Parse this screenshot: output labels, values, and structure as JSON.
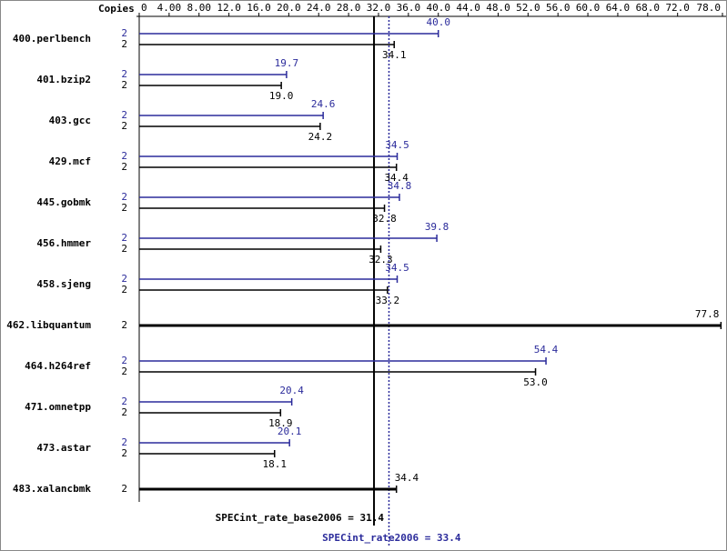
{
  "chart_data": {
    "type": "spec-bar",
    "copies_label": "Copies",
    "categories": [
      "400.perlbench",
      "401.bzip2",
      "403.gcc",
      "429.mcf",
      "445.gobmk",
      "456.hmmer",
      "458.sjeng",
      "462.libquantum",
      "464.h264ref",
      "471.omnetpp",
      "473.astar",
      "483.xalancbmk"
    ],
    "xlim": [
      0,
      78
    ],
    "xticks": [
      0,
      {
        "value": 4,
        "label": "4.00"
      },
      {
        "value": 8,
        "label": "8.00"
      },
      {
        "value": 12,
        "label": "12.0"
      },
      {
        "value": 16,
        "label": "16.0"
      },
      {
        "value": 20,
        "label": "20.0"
      },
      {
        "value": 24,
        "label": "24.0"
      },
      {
        "value": 28,
        "label": "28.0"
      },
      {
        "value": 32,
        "label": "32.0"
      },
      {
        "value": 36,
        "label": "36.0"
      },
      {
        "value": 40,
        "label": "40.0"
      },
      {
        "value": 44,
        "label": "44.0"
      },
      {
        "value": 48,
        "label": "48.0"
      },
      {
        "value": 52,
        "label": "52.0"
      },
      {
        "value": 56,
        "label": "56.0"
      },
      {
        "value": 60,
        "label": "60.0"
      },
      {
        "value": 64,
        "label": "64.0"
      },
      {
        "value": 68,
        "label": "68.0"
      },
      {
        "value": 72,
        "label": "72.0"
      },
      {
        "value": 78,
        "label": "78.0"
      }
    ],
    "series": [
      {
        "name": "peak",
        "color": "#2b2b9b",
        "copies": [
          2,
          2,
          2,
          2,
          2,
          2,
          2,
          null,
          2,
          2,
          2,
          null
        ],
        "values": [
          40.0,
          19.7,
          24.6,
          34.5,
          34.8,
          39.8,
          34.5,
          null,
          54.4,
          20.4,
          20.1,
          null
        ],
        "value_labels": [
          "40.0",
          "19.7",
          "24.6",
          "34.5",
          "34.8",
          "39.8",
          "34.5",
          null,
          "54.4",
          "20.4",
          "20.1",
          null
        ]
      },
      {
        "name": "base",
        "color": "#000000",
        "copies": [
          2,
          2,
          2,
          2,
          2,
          2,
          2,
          2,
          2,
          2,
          2,
          2
        ],
        "values": [
          34.1,
          19.0,
          24.2,
          34.4,
          32.8,
          32.3,
          33.2,
          77.8,
          53.0,
          18.9,
          18.1,
          34.4
        ],
        "value_labels": [
          "34.1",
          "19.0",
          "24.2",
          "34.4",
          "32.8",
          "32.3",
          "33.2",
          "77.8",
          "53.0",
          "18.9",
          "18.1",
          "34.4"
        ]
      }
    ],
    "base_line": {
      "value": 31.4,
      "label": "SPECint_rate_base2006 = 31.4"
    },
    "peak_line": {
      "value": 33.4,
      "label": "SPECint_rate2006 = 33.4"
    }
  }
}
